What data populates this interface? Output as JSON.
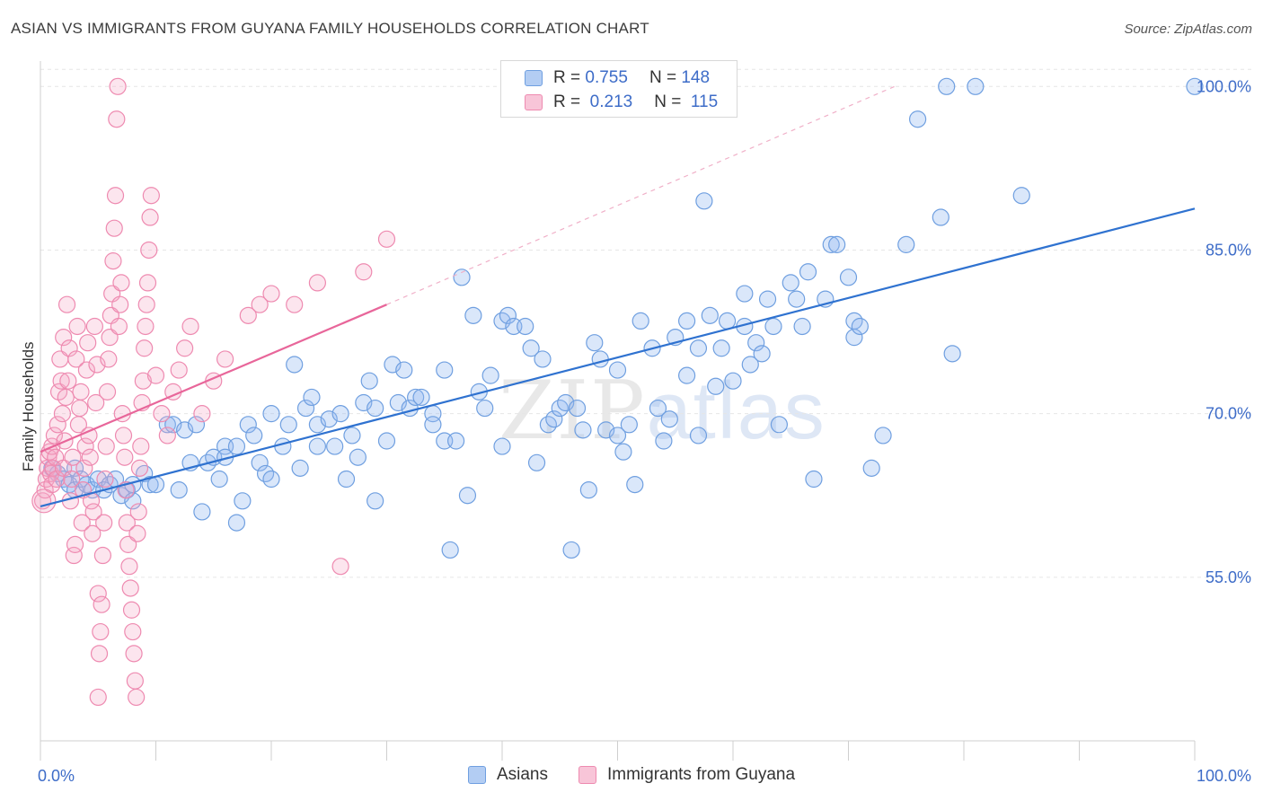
{
  "chart_data": {
    "type": "scatter",
    "title": "ASIAN VS IMMIGRANTS FROM GUYANA FAMILY HOUSEHOLDS CORRELATION CHART",
    "source": "Source: ZipAtlas.com",
    "ylabel": "Family Households",
    "xlabel": "",
    "xlim": [
      0,
      100
    ],
    "ylim": [
      40,
      102
    ],
    "x_tick_labels": [
      "0.0%",
      "100.0%"
    ],
    "y_ticks": [
      55,
      70,
      85,
      100
    ],
    "y_tick_labels": [
      "55.0%",
      "70.0%",
      "85.0%",
      "100.0%"
    ],
    "grid": true,
    "legend": [
      {
        "name": "Asians",
        "r_label": "R =",
        "r": "0.755",
        "n_label": "N =",
        "n": "148",
        "color": "#6f9fe0",
        "fill": "#b3cdf3"
      },
      {
        "name": "Immigrants from Guyana",
        "r_label": "R =",
        "r": "0.213",
        "n_label": "N =",
        "n": "115",
        "color": "#ee8ab0",
        "fill": "#f8c5d8"
      }
    ],
    "watermark": {
      "zip": "ZIP",
      "atlas": "atlas"
    },
    "series": [
      {
        "name": "Asians",
        "color": "#6f9fe0",
        "fill": "rgba(150,185,240,0.35)",
        "trend": {
          "x0": 0,
          "y0": 61.5,
          "x1": 100,
          "y1": 88.8,
          "color": "#2f72d0"
        },
        "points": [
          [
            1,
            65
          ],
          [
            1.5,
            64.5
          ],
          [
            2,
            64
          ],
          [
            2.5,
            63.5
          ],
          [
            3,
            63
          ],
          [
            3,
            65
          ],
          [
            3.5,
            64
          ],
          [
            4,
            63.5
          ],
          [
            4.5,
            63
          ],
          [
            5,
            64
          ],
          [
            5.5,
            63
          ],
          [
            6,
            63.5
          ],
          [
            6.5,
            64
          ],
          [
            7,
            62.5
          ],
          [
            7.5,
            63
          ],
          [
            8,
            63.5
          ],
          [
            8,
            62
          ],
          [
            9,
            64.5
          ],
          [
            9.5,
            63.5
          ],
          [
            10,
            63.5
          ],
          [
            11,
            69
          ],
          [
            11.5,
            69
          ],
          [
            12,
            63
          ],
          [
            12.5,
            68.5
          ],
          [
            13,
            65.5
          ],
          [
            13.5,
            69
          ],
          [
            14,
            61
          ],
          [
            14.5,
            65.5
          ],
          [
            15,
            66
          ],
          [
            15.5,
            64
          ],
          [
            16,
            67
          ],
          [
            16,
            66
          ],
          [
            17,
            67
          ],
          [
            17,
            60
          ],
          [
            17.5,
            62
          ],
          [
            18,
            69
          ],
          [
            18.5,
            68
          ],
          [
            19,
            65.5
          ],
          [
            19.5,
            64.5
          ],
          [
            20,
            64
          ],
          [
            20,
            70
          ],
          [
            21,
            67
          ],
          [
            21.5,
            69
          ],
          [
            22,
            74.5
          ],
          [
            22.5,
            65
          ],
          [
            23,
            70.5
          ],
          [
            23.5,
            71.5
          ],
          [
            24,
            67
          ],
          [
            24,
            69
          ],
          [
            25,
            69.5
          ],
          [
            25.5,
            67
          ],
          [
            26,
            70
          ],
          [
            26.5,
            64
          ],
          [
            27,
            68
          ],
          [
            27.5,
            66
          ],
          [
            28,
            71
          ],
          [
            28.5,
            73
          ],
          [
            29,
            70.5
          ],
          [
            29,
            62
          ],
          [
            30,
            67.5
          ],
          [
            30.5,
            74.5
          ],
          [
            31,
            71
          ],
          [
            31.5,
            74
          ],
          [
            32,
            70.5
          ],
          [
            32.5,
            71.5
          ],
          [
            33,
            71.5
          ],
          [
            34,
            70
          ],
          [
            34,
            69
          ],
          [
            35,
            67.5
          ],
          [
            35,
            74
          ],
          [
            35.5,
            57.5
          ],
          [
            36,
            67.5
          ],
          [
            36.5,
            82.5
          ],
          [
            37,
            62.5
          ],
          [
            37.5,
            79
          ],
          [
            38,
            72
          ],
          [
            38.5,
            70.5
          ],
          [
            39,
            73.5
          ],
          [
            40,
            78.5
          ],
          [
            40,
            67
          ],
          [
            40.5,
            79
          ],
          [
            41,
            78
          ],
          [
            42,
            78
          ],
          [
            42.5,
            76
          ],
          [
            43,
            65.5
          ],
          [
            43.5,
            75
          ],
          [
            44,
            69
          ],
          [
            44.5,
            69.5
          ],
          [
            45,
            70.5
          ],
          [
            45.5,
            71
          ],
          [
            46,
            57.5
          ],
          [
            46.5,
            70.5
          ],
          [
            47,
            68.5
          ],
          [
            47.5,
            63
          ],
          [
            48,
            76.5
          ],
          [
            48.5,
            75
          ],
          [
            49,
            68.5
          ],
          [
            50,
            68
          ],
          [
            50,
            74
          ],
          [
            50.5,
            66.5
          ],
          [
            51,
            69
          ],
          [
            51.5,
            63.5
          ],
          [
            52,
            78.5
          ],
          [
            53,
            76
          ],
          [
            53.5,
            70.5
          ],
          [
            54,
            67.5
          ],
          [
            54.5,
            69.5
          ],
          [
            55,
            77
          ],
          [
            56,
            73.5
          ],
          [
            56,
            78.5
          ],
          [
            57,
            76
          ],
          [
            57,
            68
          ],
          [
            57.5,
            89.5
          ],
          [
            58,
            79
          ],
          [
            58.5,
            72.5
          ],
          [
            59,
            76
          ],
          [
            59.5,
            78.5
          ],
          [
            60,
            73
          ],
          [
            61,
            78
          ],
          [
            61,
            81
          ],
          [
            61.5,
            74.5
          ],
          [
            62,
            76.5
          ],
          [
            62.5,
            75.5
          ],
          [
            63,
            80.5
          ],
          [
            63.5,
            78
          ],
          [
            64,
            69
          ],
          [
            65,
            82
          ],
          [
            65.5,
            80.5
          ],
          [
            66,
            78
          ],
          [
            66.5,
            83
          ],
          [
            67,
            64
          ],
          [
            68,
            80.5
          ],
          [
            68.5,
            85.5
          ],
          [
            69,
            85.5
          ],
          [
            70,
            82.5
          ],
          [
            70.5,
            78.5
          ],
          [
            70.5,
            77
          ],
          [
            71,
            78
          ],
          [
            72,
            65
          ],
          [
            73,
            68
          ],
          [
            75,
            85.5
          ],
          [
            76,
            97
          ],
          [
            78,
            88
          ],
          [
            78.5,
            100
          ],
          [
            79,
            75.5
          ],
          [
            81,
            100
          ],
          [
            85,
            90
          ],
          [
            100,
            100
          ]
        ]
      },
      {
        "name": "Immigrants from Guyana",
        "color": "#ee8ab0",
        "fill": "rgba(245,170,200,0.30)",
        "trend": {
          "x0": 0,
          "y0": 66.5,
          "x1": 30,
          "y1": 80,
          "color": "#e8669a"
        },
        "trend_ext": {
          "x0": 30,
          "y0": 80,
          "x1": 74,
          "y1": 100
        },
        "points": [
          [
            0.2,
            62
          ],
          [
            0.4,
            63
          ],
          [
            0.5,
            64
          ],
          [
            0.6,
            65
          ],
          [
            0.7,
            66
          ],
          [
            0.8,
            66.5
          ],
          [
            0.9,
            64.5
          ],
          [
            1,
            63.5
          ],
          [
            1,
            67
          ],
          [
            1.1,
            65
          ],
          [
            1.2,
            68
          ],
          [
            1.3,
            66
          ],
          [
            1.4,
            64
          ],
          [
            1.5,
            69
          ],
          [
            1.6,
            72
          ],
          [
            1.7,
            75
          ],
          [
            1.8,
            73
          ],
          [
            1.9,
            70
          ],
          [
            2,
            77
          ],
          [
            2,
            65
          ],
          [
            2.1,
            67.5
          ],
          [
            2.2,
            71.5
          ],
          [
            2.3,
            80
          ],
          [
            2.4,
            73
          ],
          [
            2.5,
            76
          ],
          [
            2.6,
            62
          ],
          [
            2.7,
            64
          ],
          [
            2.8,
            66
          ],
          [
            2.9,
            57
          ],
          [
            3,
            58
          ],
          [
            3.1,
            75
          ],
          [
            3.2,
            78
          ],
          [
            3.3,
            69
          ],
          [
            3.4,
            70.5
          ],
          [
            3.5,
            72
          ],
          [
            3.6,
            60
          ],
          [
            3.7,
            63
          ],
          [
            3.8,
            65
          ],
          [
            3.9,
            67
          ],
          [
            4,
            74
          ],
          [
            4.1,
            76.5
          ],
          [
            4.2,
            68
          ],
          [
            4.3,
            66
          ],
          [
            4.4,
            62
          ],
          [
            4.5,
            59
          ],
          [
            4.6,
            61
          ],
          [
            4.7,
            78
          ],
          [
            4.8,
            71
          ],
          [
            4.9,
            74.5
          ],
          [
            5,
            53.5
          ],
          [
            5,
            44
          ],
          [
            5.1,
            48
          ],
          [
            5.2,
            50
          ],
          [
            5.3,
            52.5
          ],
          [
            5.4,
            57
          ],
          [
            5.5,
            60
          ],
          [
            5.6,
            64
          ],
          [
            5.7,
            67
          ],
          [
            5.8,
            72
          ],
          [
            5.9,
            75
          ],
          [
            6,
            77
          ],
          [
            6.1,
            79
          ],
          [
            6.2,
            81
          ],
          [
            6.3,
            84
          ],
          [
            6.4,
            87
          ],
          [
            6.5,
            90
          ],
          [
            6.6,
            97
          ],
          [
            6.7,
            100
          ],
          [
            6.8,
            78
          ],
          [
            6.9,
            80
          ],
          [
            7,
            82
          ],
          [
            7.1,
            70
          ],
          [
            7.2,
            68
          ],
          [
            7.3,
            66
          ],
          [
            7.4,
            63
          ],
          [
            7.5,
            60
          ],
          [
            7.6,
            58
          ],
          [
            7.7,
            56
          ],
          [
            7.8,
            54
          ],
          [
            7.9,
            52
          ],
          [
            8,
            50
          ],
          [
            8.1,
            48
          ],
          [
            8.2,
            45.5
          ],
          [
            8.3,
            44
          ],
          [
            8.4,
            59
          ],
          [
            8.5,
            61
          ],
          [
            8.6,
            65
          ],
          [
            8.7,
            67
          ],
          [
            8.8,
            71
          ],
          [
            8.9,
            73
          ],
          [
            9,
            76
          ],
          [
            9.1,
            78
          ],
          [
            9.2,
            80
          ],
          [
            9.3,
            82
          ],
          [
            9.4,
            85
          ],
          [
            9.5,
            88
          ],
          [
            9.6,
            90
          ],
          [
            10,
            73.5
          ],
          [
            10.5,
            70
          ],
          [
            11,
            68
          ],
          [
            11.5,
            72
          ],
          [
            12,
            74
          ],
          [
            12.5,
            76
          ],
          [
            13,
            78
          ],
          [
            14,
            70
          ],
          [
            15,
            73
          ],
          [
            16,
            75
          ],
          [
            18,
            79
          ],
          [
            19,
            80
          ],
          [
            20,
            81
          ],
          [
            22,
            80
          ],
          [
            24,
            82
          ],
          [
            26,
            56
          ],
          [
            28,
            83
          ],
          [
            30,
            86
          ]
        ]
      }
    ]
  }
}
